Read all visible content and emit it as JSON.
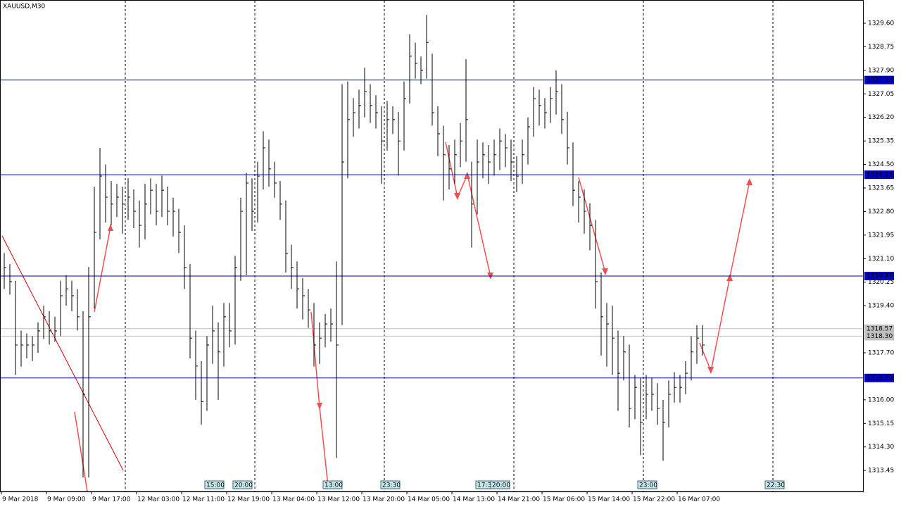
{
  "chart_data": {
    "type": "ohlc",
    "title": "XAUUSD,M30",
    "ylim": [
      1312.69,
      1330.44
    ],
    "yticks": [
      {
        "value": 1329.6,
        "label": "1329.60"
      },
      1328.75,
      {
        "value": 1327.9,
        "label": "1327.90"
      },
      1327.05,
      {
        "value": 1326.2,
        "label": "1326.20"
      },
      1325.35,
      {
        "value": 1324.5,
        "label": "1324.50"
      },
      1323.65,
      {
        "value": 1322.8,
        "label": "1322.80"
      },
      1321.95,
      {
        "value": 1321.1,
        "label": "1321.10"
      },
      1320.25,
      {
        "value": 1319.4,
        "label": "1319.40"
      },
      {
        "value": 1317.7,
        "label": "1317.70"
      },
      {
        "value": 1316.0,
        "label": "1316.00"
      },
      1315.15,
      {
        "value": 1314.3,
        "label": "1314.30"
      },
      1313.45
    ],
    "xlabels": [
      "9 Mar 2018",
      "9 Mar 09:00",
      "9 Mar 17:00",
      "12 Mar 03:00",
      "12 Mar 11:00",
      "12 Mar 19:00",
      "13 Mar 04:00",
      "13 Mar 12:00",
      "13 Mar 20:00",
      "14 Mar 05:00",
      "14 Mar 13:00",
      "14 Mar 21:00",
      "15 Mar 06:00",
      "15 Mar 14:00",
      "15 Mar 22:00",
      "16 Mar 07:00"
    ],
    "time_markers": [
      "15:00",
      "20:00",
      "23:30",
      "13:00",
      "17:30",
      "20:00",
      "23:00",
      "22:30"
    ],
    "levels": [
      1327.55,
      1324.13,
      1320.47,
      1316.79
    ],
    "level_color": "#0000c0",
    "price_lines": [
      1318.57,
      {
        "value": 1318.3,
        "label": "1318.30"
      }
    ],
    "price_color": "#c0c0c0",
    "bar_color": "#000000",
    "high": [
      1321.3,
      1320.9,
      1320.3,
      1318.5,
      1318.4,
      1318.3,
      1318.8,
      1319.4,
      1319.2,
      1319.0,
      1320.3,
      1320.5,
      1320.3,
      1320.0,
      1319.2,
      1320.8,
      1323.7,
      1325.1,
      1324.5,
      1323.9,
      1323.8,
      1323.7,
      1324.0,
      1323.6,
      1323.2,
      1323.8,
      1324.0,
      1323.8,
      1324.1,
      1323.7,
      1323.3,
      1322.9,
      1322.3,
      1320.9,
      1318.5,
      1317.4,
      1318.3,
      1319.4,
      1318.8,
      1319.5,
      1319.5,
      1321.2,
      1323.3,
      1324.2,
      1324.0,
      1324.6,
      1325.7,
      1325.4,
      1324.6,
      1323.9,
      1323.2,
      1321.6,
      1321.0,
      1320.4,
      1320.0,
      1319.5,
      1318.8,
      1319.1,
      1319.3,
      1321.0,
      1327.4,
      1327.5,
      1326.9,
      1327.2,
      1328.0,
      1327.4,
      1327.0,
      1326.6,
      1326.8,
      1326.6,
      1326.4,
      1327.5,
      1329.2,
      1328.9,
      1328.4,
      1329.9,
      1328.5,
      1326.6,
      1325.9,
      1325.2,
      1325.4,
      1326.0,
      1328.3,
      1324.6,
      1325.4,
      1325.3,
      1325.2,
      1325.4,
      1325.8,
      1325.6,
      1325.4,
      1324.8,
      1325.4,
      1326.2,
      1327.3,
      1327.2,
      1326.9,
      1327.3,
      1327.9,
      1327.4,
      1326.4,
      1325.3,
      1323.9,
      1323.6,
      1323.1,
      1322.5,
      1320.6,
      1319.5,
      1319.4,
      1318.5,
      1318.3,
      1318.0,
      1316.9,
      1316.8,
      1316.9,
      1316.8,
      1316.6,
      1316.0,
      1316.7,
      1317.0,
      1316.9,
      1317.4,
      1318.3,
      1318.7,
      1318.7
    ],
    "low": [
      1320.0,
      1319.8,
      1316.9,
      1317.2,
      1317.5,
      1317.4,
      1317.7,
      1318.2,
      1318.0,
      1318.1,
      1318.3,
      1319.4,
      1319.2,
      1318.5,
      1313.2,
      1313.2,
      1319.3,
      1321.8,
      1322.4,
      1322.3,
      1322.6,
      1322.0,
      1322.5,
      1322.2,
      1321.5,
      1321.8,
      1322.7,
      1322.3,
      1322.6,
      1322.3,
      1321.9,
      1321.3,
      1320.0,
      1317.5,
      1316.0,
      1315.1,
      1315.6,
      1317.3,
      1316.0,
      1317.2,
      1317.9,
      1318.0,
      1320.3,
      1320.5,
      1322.1,
      1322.4,
      1323.6,
      1323.7,
      1323.3,
      1322.5,
      1320.6,
      1320.0,
      1319.3,
      1318.9,
      1318.6,
      1317.2,
      1317.3,
      1317.9,
      1318.1,
      1313.9,
      1318.7,
      1324.0,
      1325.5,
      1325.8,
      1326.2,
      1326.0,
      1325.8,
      1323.8,
      1325.0,
      1325.6,
      1324.1,
      1325.0,
      1326.7,
      1327.6,
      1327.4,
      1327.6,
      1325.9,
      1324.8,
      1323.2,
      1323.6,
      1323.8,
      1324.4,
      1324.6,
      1321.5,
      1322.7,
      1324.0,
      1323.8,
      1324.1,
      1324.3,
      1324.4,
      1323.9,
      1323.5,
      1323.8,
      1324.5,
      1325.5,
      1325.9,
      1325.8,
      1326.0,
      1326.3,
      1325.6,
      1324.5,
      1323.0,
      1322.4,
      1322.0,
      1321.4,
      1319.3,
      1317.6,
      1317.2,
      1316.9,
      1315.6,
      1316.7,
      1315.0,
      1315.3,
      1314.0,
      1315.3,
      1315.6,
      1315.1,
      1313.8,
      1315.0,
      1315.9,
      1315.9,
      1316.2,
      1316.7,
      1317.3,
      1317.6
    ],
    "close": [
      1320.78,
      1320.27,
      1317.98,
      1317.98,
      1317.98,
      1317.98,
      1318.49,
      1319.0,
      1318.49,
      1318.49,
      1319.76,
      1320.01,
      1319.76,
      1319.0,
      1316.2,
      1319.0,
      1322.05,
      1324.08,
      1323.32,
      1323.07,
      1323.32,
      1323.07,
      1323.32,
      1322.81,
      1322.3,
      1323.07,
      1323.57,
      1322.81,
      1323.57,
      1322.81,
      1322.81,
      1322.05,
      1320.78,
      1318.23,
      1317.22,
      1315.94,
      1317.98,
      1318.49,
      1317.73,
      1319.0,
      1318.49,
      1320.78,
      1322.81,
      1323.83,
      1322.81,
      1324.08,
      1325.1,
      1324.34,
      1323.83,
      1323.07,
      1321.29,
      1320.78,
      1320.01,
      1319.76,
      1319.25,
      1317.98,
      1318.23,
      1318.74,
      1318.74,
      1317.98,
      1324.59,
      1326.12,
      1326.37,
      1326.63,
      1327.13,
      1326.63,
      1326.37,
      1325.35,
      1326.12,
      1326.12,
      1325.35,
      1326.88,
      1328.41,
      1328.15,
      1327.9,
      1328.91,
      1326.37,
      1325.61,
      1324.85,
      1324.34,
      1324.85,
      1325.35,
      1326.12,
      1323.07,
      1324.59,
      1324.85,
      1324.59,
      1324.85,
      1325.35,
      1325.1,
      1324.59,
      1324.08,
      1324.85,
      1325.86,
      1326.88,
      1326.63,
      1326.37,
      1326.88,
      1327.13,
      1326.12,
      1325.1,
      1323.57,
      1323.32,
      1322.81,
      1322.3,
      1320.27,
      1319.0,
      1318.74,
      1318.23,
      1316.96,
      1317.73,
      1315.69,
      1316.45,
      1315.18,
      1316.2,
      1316.2,
      1315.69,
      1315.18,
      1316.2,
      1316.45,
      1316.45,
      1316.96,
      1317.73,
      1318.23,
      1317.98
    ]
  }
}
